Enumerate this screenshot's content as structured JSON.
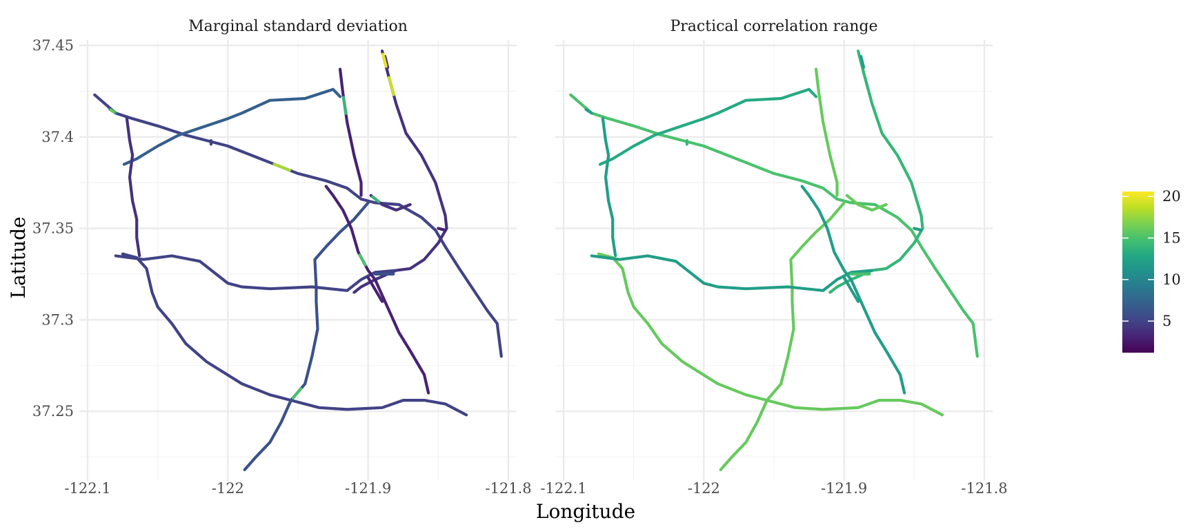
{
  "chart_data": [
    {
      "type": "map",
      "title": "Marginal standard deviation",
      "xlabel": "Longitude",
      "ylabel": "Latitude",
      "xlim": [
        -122.1,
        -121.8
      ],
      "ylim": [
        37.215,
        37.45
      ],
      "x_ticks": [
        -122.1,
        -122,
        -121.9,
        -121.8
      ],
      "x_tick_labels": [
        "-122.1",
        "-122",
        "-121.9",
        "-121.8"
      ],
      "y_ticks": [
        37.25,
        37.3,
        37.35,
        37.4,
        37.45
      ],
      "y_tick_labels": [
        "37.25",
        "37.3",
        "37.35",
        "37.4",
        "37.45"
      ],
      "grid": true,
      "colormap": "viridis",
      "typical_value": 4,
      "road_values": [
        5,
        7,
        3,
        4,
        5,
        6,
        4,
        5,
        3,
        3,
        9,
        4,
        6,
        5,
        4,
        3
      ],
      "highlights": [
        {
          "road": 0,
          "at": 0.32,
          "value": 18
        },
        {
          "road": 3,
          "at": 0.05,
          "value": 20
        },
        {
          "road": 3,
          "at": 0.1,
          "value": 19
        },
        {
          "road": 10,
          "at": 0.55,
          "value": 16
        },
        {
          "road": 2,
          "at": 0.35,
          "value": 14
        },
        {
          "road": 5,
          "at": 0.3,
          "value": 15
        },
        {
          "road": 8,
          "at": 0.45,
          "value": 15
        },
        {
          "road": 6,
          "at": 0.3,
          "value": 14
        }
      ]
    },
    {
      "type": "map",
      "title": "Practical correlation range",
      "xlabel": "Longitude",
      "ylabel": "Latitude",
      "xlim": [
        -122.1,
        -121.8
      ],
      "ylim": [
        37.215,
        37.45
      ],
      "x_ticks": [
        -122.1,
        -122,
        -121.9,
        -121.8
      ],
      "x_tick_labels": [
        "-122.1",
        "-122",
        "-121.9",
        "-121.8"
      ],
      "y_ticks": [
        37.25,
        37.3,
        37.35,
        37.4,
        37.45
      ],
      "y_tick_labels": [
        "37.25",
        "37.3",
        "37.35",
        "37.4",
        "37.45"
      ],
      "grid": true,
      "colormap": "viridis",
      "road_values": [
        15,
        13,
        16,
        14,
        16,
        16,
        16,
        12,
        12,
        12,
        12,
        12,
        15,
        14,
        12,
        12
      ]
    }
  ],
  "roads": [
    {
      "id": "us101",
      "points": [
        [
          -122.095,
          37.423
        ],
        [
          -122.08,
          37.413
        ],
        [
          -122.068,
          37.41
        ],
        [
          -122.05,
          37.406
        ],
        [
          -122.03,
          37.401
        ],
        [
          -122.0,
          37.395
        ],
        [
          -121.97,
          37.386
        ],
        [
          -121.95,
          37.38
        ],
        [
          -121.93,
          37.376
        ],
        [
          -121.915,
          37.372
        ],
        [
          -121.905,
          37.366
        ],
        [
          -121.895,
          37.364
        ],
        [
          -121.878,
          37.363
        ],
        [
          -121.862,
          37.356
        ],
        [
          -121.852,
          37.349
        ],
        [
          -121.845,
          37.34
        ],
        [
          -121.835,
          37.328
        ],
        [
          -121.815,
          37.305
        ],
        [
          -121.808,
          37.298
        ],
        [
          -121.805,
          37.28
        ]
      ]
    },
    {
      "id": "sr237",
      "points": [
        [
          -122.074,
          37.385
        ],
        [
          -122.065,
          37.388
        ],
        [
          -122.05,
          37.395
        ],
        [
          -122.035,
          37.401
        ],
        [
          -122.0,
          37.41
        ],
        [
          -121.99,
          37.413
        ],
        [
          -121.97,
          37.42
        ],
        [
          -121.945,
          37.421
        ],
        [
          -121.925,
          37.426
        ],
        [
          -121.92,
          37.422
        ]
      ]
    },
    {
      "id": "i880",
      "points": [
        [
          -121.92,
          37.437
        ],
        [
          -121.918,
          37.424
        ],
        [
          -121.915,
          37.408
        ],
        [
          -121.91,
          37.39
        ],
        [
          -121.905,
          37.375
        ],
        [
          -121.905,
          37.368
        ]
      ]
    },
    {
      "id": "i680",
      "points": [
        [
          -121.89,
          37.447
        ],
        [
          -121.886,
          37.435
        ],
        [
          -121.88,
          37.418
        ],
        [
          -121.873,
          37.402
        ],
        [
          -121.862,
          37.39
        ],
        [
          -121.852,
          37.375
        ],
        [
          -121.845,
          37.357
        ],
        [
          -121.844,
          37.35
        ],
        [
          -121.85,
          37.342
        ],
        [
          -121.86,
          37.333
        ],
        [
          -121.87,
          37.328
        ],
        [
          -121.88,
          37.327
        ],
        [
          -121.895,
          37.322
        ],
        [
          -121.905,
          37.318
        ],
        [
          -121.91,
          37.315
        ]
      ]
    },
    {
      "id": "sr85",
      "points": [
        [
          -122.075,
          37.336
        ],
        [
          -122.065,
          37.334
        ],
        [
          -122.058,
          37.328
        ],
        [
          -122.054,
          37.315
        ],
        [
          -122.05,
          37.307
        ],
        [
          -122.04,
          37.298
        ],
        [
          -122.03,
          37.287
        ],
        [
          -122.015,
          37.277
        ],
        [
          -121.99,
          37.265
        ],
        [
          -121.97,
          37.259
        ],
        [
          -121.955,
          37.256
        ],
        [
          -121.935,
          37.252
        ],
        [
          -121.915,
          37.251
        ],
        [
          -121.89,
          37.252
        ],
        [
          -121.875,
          37.256
        ],
        [
          -121.86,
          37.256
        ],
        [
          -121.845,
          37.254
        ],
        [
          -121.83,
          37.248
        ]
      ]
    },
    {
      "id": "sr17",
      "points": [
        [
          -121.988,
          37.218
        ],
        [
          -121.98,
          37.225
        ],
        [
          -121.97,
          37.233
        ],
        [
          -121.962,
          37.244
        ],
        [
          -121.955,
          37.256
        ],
        [
          -121.945,
          37.265
        ],
        [
          -121.94,
          37.28
        ],
        [
          -121.936,
          37.295
        ],
        [
          -121.937,
          37.31
        ],
        [
          -121.937,
          37.318
        ],
        [
          -121.938,
          37.333
        ],
        [
          -121.93,
          37.34
        ],
        [
          -121.92,
          37.348
        ],
        [
          -121.91,
          37.355
        ],
        [
          -121.9,
          37.364
        ]
      ]
    },
    {
      "id": "sr87",
      "points": [
        [
          -121.898,
          37.368
        ],
        [
          -121.89,
          37.363
        ],
        [
          -121.88,
          37.36
        ],
        [
          -121.87,
          37.363
        ]
      ]
    },
    {
      "id": "i280",
      "points": [
        [
          -122.08,
          37.335
        ],
        [
          -122.06,
          37.333
        ],
        [
          -122.04,
          37.335
        ],
        [
          -122.02,
          37.332
        ],
        [
          -122.0,
          37.32
        ],
        [
          -121.99,
          37.318
        ],
        [
          -121.97,
          37.317
        ],
        [
          -121.94,
          37.318
        ],
        [
          -121.915,
          37.316
        ],
        [
          -121.905,
          37.322
        ],
        [
          -121.895,
          37.326
        ],
        [
          -121.88,
          37.327
        ]
      ]
    },
    {
      "id": "sr87b",
      "points": [
        [
          -121.93,
          37.373
        ],
        [
          -121.925,
          37.368
        ],
        [
          -121.918,
          37.36
        ],
        [
          -121.912,
          37.35
        ],
        [
          -121.907,
          37.337
        ],
        [
          -121.9,
          37.327
        ],
        [
          -121.895,
          37.322
        ],
        [
          -121.888,
          37.31
        ],
        [
          -121.878,
          37.293
        ],
        [
          -121.87,
          37.283
        ],
        [
          -121.86,
          37.27
        ],
        [
          -121.857,
          37.26
        ]
      ]
    },
    {
      "id": "sr82",
      "points": [
        [
          -121.9,
          37.323
        ],
        [
          -121.89,
          37.31
        ]
      ]
    },
    {
      "id": "stub1",
      "points": [
        [
          -122.084,
          37.415
        ],
        [
          -122.08,
          37.413
        ]
      ]
    },
    {
      "id": "i280b",
      "points": [
        [
          -122.072,
          37.41
        ],
        [
          -122.07,
          37.398
        ],
        [
          -122.068,
          37.39
        ],
        [
          -122.07,
          37.378
        ],
        [
          -122.068,
          37.365
        ],
        [
          -122.065,
          37.355
        ],
        [
          -122.065,
          37.345
        ],
        [
          -122.063,
          37.335
        ]
      ]
    },
    {
      "id": "sr85b",
      "points": [
        [
          -121.895,
          37.325
        ],
        [
          -121.882,
          37.325
        ]
      ]
    },
    {
      "id": "stub2",
      "points": [
        [
          -122.012,
          37.398
        ],
        [
          -122.012,
          37.396
        ]
      ]
    },
    {
      "id": "stub3",
      "points": [
        [
          -121.888,
          37.444
        ],
        [
          -121.886,
          37.438
        ]
      ]
    },
    {
      "id": "stub4",
      "points": [
        [
          -121.845,
          37.349
        ],
        [
          -121.85,
          37.35
        ]
      ]
    }
  ],
  "colorbar": {
    "ticks": [
      5,
      10,
      15,
      20
    ],
    "tick_labels": [
      "5",
      "10",
      "15",
      "20"
    ],
    "min": 1.2,
    "max": 20.6
  }
}
